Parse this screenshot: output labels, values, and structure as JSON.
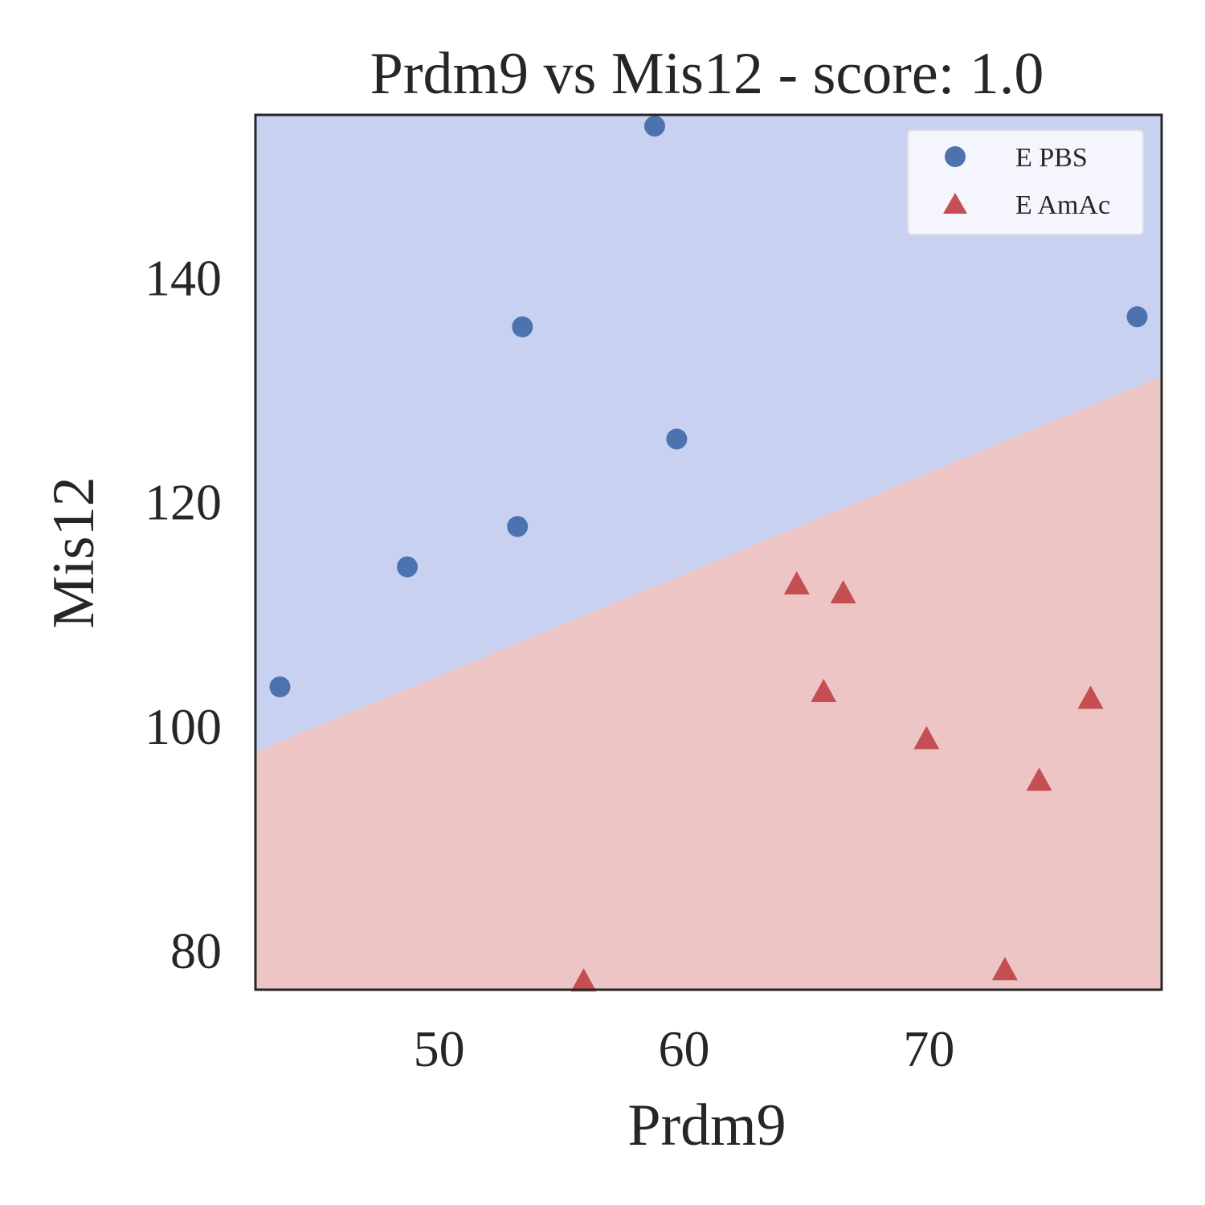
{
  "chart_data": {
    "type": "scatter",
    "title": "Prdm9 vs Mis12 - score: 1.0",
    "xlabel": "Prdm9",
    "ylabel": "Mis12",
    "xlim": [
      42.5,
      79.5
    ],
    "ylim": [
      76.5,
      154.5
    ],
    "xticks": [
      50,
      60,
      70
    ],
    "yticks": [
      80,
      100,
      120,
      140
    ],
    "grid": false,
    "legend_position": "top-right",
    "decision_boundary": {
      "x": [
        42.5,
        79.5
      ],
      "y": [
        97.7,
        131.2
      ],
      "above_color": "#c9d1f1",
      "below_color": "#eec5c5"
    },
    "series": [
      {
        "name": "E PBS",
        "marker": "circle",
        "color": "#4c72b0",
        "points": [
          [
            43.5,
            103.5
          ],
          [
            48.7,
            114.2
          ],
          [
            53.2,
            117.8
          ],
          [
            53.4,
            135.6
          ],
          [
            58.8,
            153.5
          ],
          [
            59.7,
            125.6
          ],
          [
            78.5,
            136.5
          ]
        ]
      },
      {
        "name": "E AmAc",
        "marker": "triangle",
        "color": "#c44e52",
        "points": [
          [
            55.9,
            77.2
          ],
          [
            64.6,
            112.6
          ],
          [
            65.7,
            103.0
          ],
          [
            66.5,
            111.8
          ],
          [
            69.9,
            98.8
          ],
          [
            73.1,
            78.2
          ],
          [
            74.5,
            95.1
          ],
          [
            76.6,
            102.4
          ]
        ]
      }
    ]
  }
}
